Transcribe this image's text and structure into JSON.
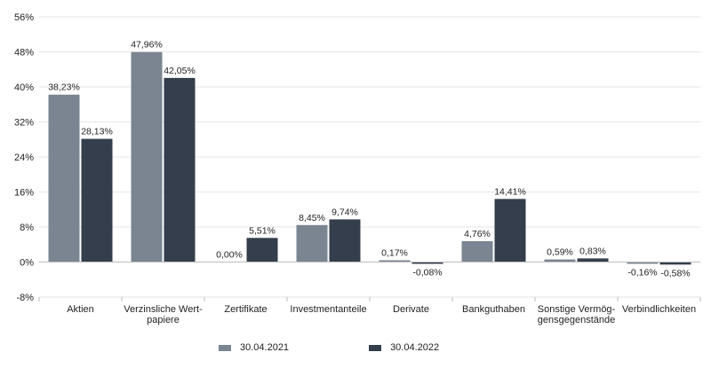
{
  "chart_data": {
    "type": "bar",
    "categories": [
      [
        "Aktien"
      ],
      [
        "Verzinsliche Wert-",
        "papiere"
      ],
      [
        "Zertifikate"
      ],
      [
        "Investmentanteile"
      ],
      [
        "Derivate"
      ],
      [
        "Bankguthaben"
      ],
      [
        "Sonstige Vermög-",
        "gensgegenstände"
      ],
      [
        "Verbindlichkeiten"
      ]
    ],
    "series": [
      {
        "name": "30.04.2021",
        "color": "#7a8591",
        "values": [
          38.23,
          47.96,
          0.0,
          8.45,
          0.17,
          4.76,
          0.59,
          -0.16
        ],
        "labels": [
          "38,23%",
          "47,96%",
          "0,00%",
          "8,45%",
          "0,17%",
          "4,76%",
          "0,59%",
          "-0,16%"
        ]
      },
      {
        "name": "30.04.2022",
        "color": "#343e4c",
        "values": [
          28.13,
          42.05,
          5.51,
          9.74,
          -0.08,
          14.41,
          0.83,
          -0.58
        ],
        "labels": [
          "28,13%",
          "42,05%",
          "5,51%",
          "9,74%",
          "-0,08%",
          "14,41%",
          "0,83%",
          "-0,58%"
        ]
      }
    ],
    "yticks": [
      -8,
      0,
      8,
      16,
      24,
      32,
      40,
      48,
      56
    ],
    "ytick_labels": [
      "-8%",
      "0%",
      "8%",
      "16%",
      "24%",
      "32%",
      "40%",
      "48%",
      "56%"
    ],
    "ylim": [
      -8,
      56
    ],
    "grid": true,
    "legend_position": "bottom-center"
  }
}
